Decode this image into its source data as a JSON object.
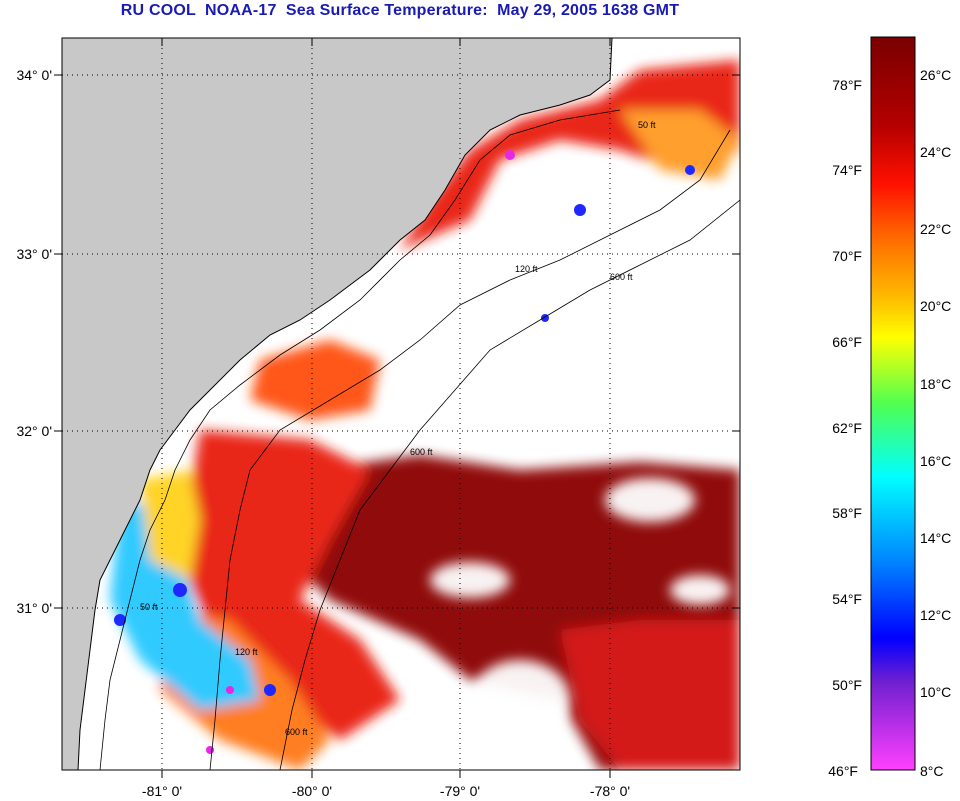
{
  "title": "RU COOL  NOAA-17  Sea Surface Temperature:  May 29, 2005 1638 GMT",
  "map": {
    "lon_ticks": [
      "-81° 0'",
      "-80° 0'",
      "-79° 0'",
      "-78° 0'"
    ],
    "lat_ticks": [
      "34° 0'",
      "33° 0'",
      "32° 0'",
      "31° 0'"
    ],
    "contours": [
      {
        "label": "50 ft"
      },
      {
        "label": "120 ft"
      },
      {
        "label": "600 ft"
      }
    ],
    "colors": {
      "land": "#c8c8c8",
      "cloud": "#ffffff",
      "warm": "#8b0000",
      "red": "#e81e0a",
      "orange": "#ff7814",
      "yellow": "#ffd21e",
      "cyan": "#28c8ff",
      "blue": "#1e28ff",
      "magenta": "#e628e6"
    }
  },
  "colorbar": {
    "fahrenheit": [
      "78°F",
      "74°F",
      "70°F",
      "66°F",
      "62°F",
      "58°F",
      "54°F",
      "50°F",
      "46°F"
    ],
    "celsius": [
      "26°C",
      "24°C",
      "22°C",
      "20°C",
      "18°C",
      "16°C",
      "14°C",
      "12°C",
      "10°C",
      "8°C"
    ]
  }
}
